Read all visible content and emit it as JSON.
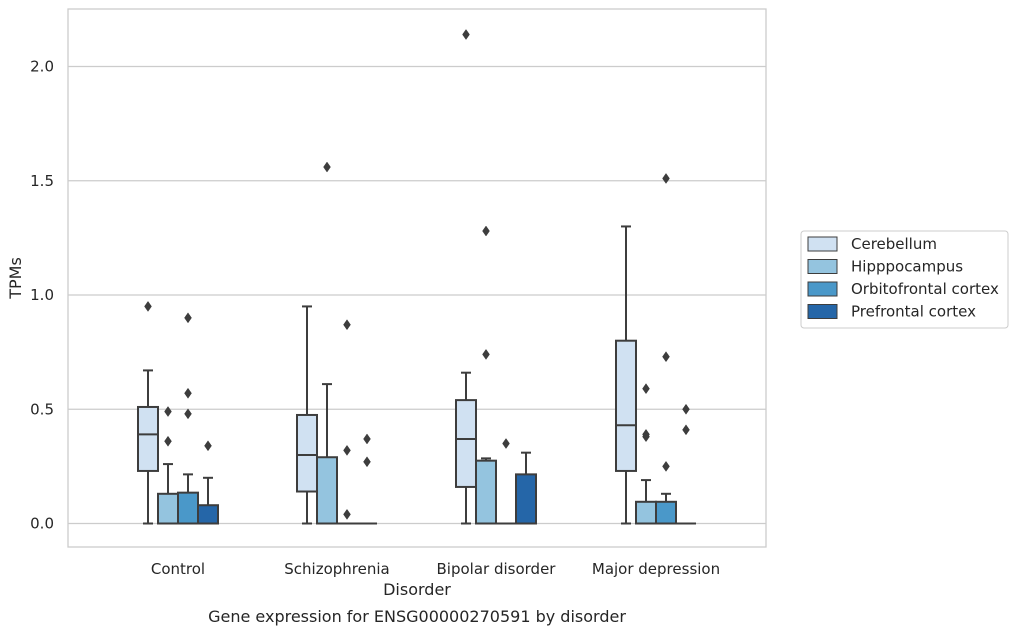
{
  "chart_data": {
    "type": "boxplot",
    "title": "Gene expression for ENSG00000270591 by disorder",
    "xlabel": "Disorder",
    "ylabel": "TPMs",
    "ylim": [
      -0.1,
      2.25
    ],
    "yticks": [
      0.0,
      0.5,
      1.0,
      1.5,
      2.0
    ],
    "ytick_labels": [
      "0.0",
      "0.5",
      "1.0",
      "1.5",
      "2.0"
    ],
    "grid": true,
    "legend_position": "right",
    "categories": [
      "Control",
      "Schizophrenia",
      "Bipolar disorder",
      "Major depression"
    ],
    "series": [
      {
        "name": "Cerebellum",
        "color": "#d0e1f2",
        "boxes": [
          {
            "whislo": 0.0,
            "q1": 0.23,
            "med": 0.39,
            "q3": 0.51,
            "whishi": 0.67,
            "fliers": [
              0.95
            ]
          },
          {
            "whislo": 0.0,
            "q1": 0.14,
            "med": 0.3,
            "q3": 0.475,
            "whishi": 0.95,
            "fliers": []
          },
          {
            "whislo": 0.0,
            "q1": 0.16,
            "med": 0.37,
            "q3": 0.54,
            "whishi": 0.66,
            "fliers": [
              2.14
            ]
          },
          {
            "whislo": 0.0,
            "q1": 0.23,
            "med": 0.43,
            "q3": 0.8,
            "whishi": 1.3,
            "fliers": []
          }
        ]
      },
      {
        "name": "Hipppocampus",
        "color": "#94c4df",
        "boxes": [
          {
            "whislo": 0.0,
            "q1": 0.0,
            "med": 0.0,
            "q3": 0.13,
            "whishi": 0.26,
            "fliers": [
              0.36,
              0.49
            ]
          },
          {
            "whislo": 0.0,
            "q1": 0.0,
            "med": 0.0,
            "q3": 0.29,
            "whishi": 0.61,
            "fliers": [
              1.56
            ]
          },
          {
            "whislo": 0.0,
            "q1": 0.0,
            "med": 0.0,
            "q3": 0.275,
            "whishi": 0.285,
            "fliers": [
              0.74,
              1.28
            ]
          },
          {
            "whislo": 0.0,
            "q1": 0.0,
            "med": 0.0,
            "q3": 0.095,
            "whishi": 0.19,
            "fliers": [
              0.38,
              0.39,
              0.59
            ]
          }
        ]
      },
      {
        "name": "Orbitofrontal cortex",
        "color": "#4a98c9",
        "boxes": [
          {
            "whislo": 0.0,
            "q1": 0.0,
            "med": 0.0,
            "q3": 0.135,
            "whishi": 0.215,
            "fliers": [
              0.48,
              0.57,
              0.9
            ]
          },
          {
            "whislo": 0.0,
            "q1": 0.0,
            "med": 0.0,
            "q3": 0.0,
            "whishi": 0.0,
            "fliers": [
              0.04,
              0.32,
              0.87
            ]
          },
          {
            "whislo": 0.0,
            "q1": 0.0,
            "med": 0.0,
            "q3": 0.0,
            "whishi": 0.0,
            "fliers": [
              0.35
            ]
          },
          {
            "whislo": 0.0,
            "q1": 0.0,
            "med": 0.0,
            "q3": 0.095,
            "whishi": 0.13,
            "fliers": [
              0.25,
              0.73,
              1.51
            ]
          }
        ]
      },
      {
        "name": "Prefrontal cortex",
        "color": "#2566a8",
        "boxes": [
          {
            "whislo": 0.0,
            "q1": 0.0,
            "med": 0.0,
            "q3": 0.08,
            "whishi": 0.2,
            "fliers": [
              0.34
            ]
          },
          {
            "whislo": 0.0,
            "q1": 0.0,
            "med": 0.0,
            "q3": 0.0,
            "whishi": 0.0,
            "fliers": [
              0.27,
              0.37
            ]
          },
          {
            "whislo": 0.0,
            "q1": 0.0,
            "med": 0.0,
            "q3": 0.215,
            "whishi": 0.31,
            "fliers": []
          },
          {
            "whislo": 0.0,
            "q1": 0.0,
            "med": 0.0,
            "q3": 0.0,
            "whishi": 0.0,
            "fliers": [
              0.41,
              0.5
            ]
          }
        ]
      }
    ]
  },
  "colors": {
    "grid": "#cccccc",
    "frame": "#cccccc",
    "box_edge": "#3d3d3d",
    "text": "#262626"
  }
}
